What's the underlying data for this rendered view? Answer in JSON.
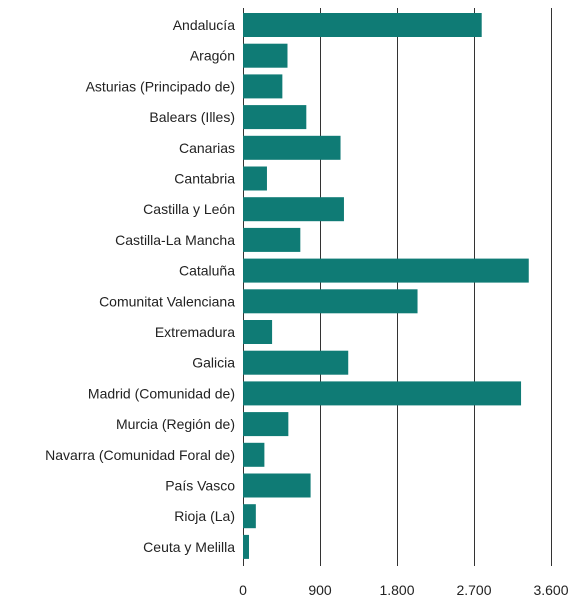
{
  "chart_data": {
    "type": "bar",
    "orientation": "horizontal",
    "categories": [
      "Andalucía",
      "Aragón",
      "Asturias (Principado de)",
      "Balears (Illes)",
      "Canarias",
      "Cantabria",
      "Castilla y León",
      "Castilla-La Mancha",
      "Cataluña",
      "Comunitat Valenciana",
      "Extremadura",
      "Galicia",
      "Madrid (Comunidad de)",
      "Murcia (Región de)",
      "Navarra (Comunidad Foral de)",
      "País Vasco",
      "Rioja (La)",
      "Ceuta y Melilla"
    ],
    "values": [
      2790,
      520,
      460,
      740,
      1140,
      280,
      1180,
      670,
      3340,
      2040,
      340,
      1230,
      3250,
      530,
      250,
      790,
      150,
      70
    ],
    "xlim": [
      0,
      3600
    ],
    "ticks": [
      0,
      900,
      1800,
      2700,
      3600
    ],
    "tick_labels": [
      "0",
      "900",
      "1.800",
      "2.700",
      "3.600"
    ],
    "grid": true,
    "bar_color": "#0f7b75",
    "grid_color": "#333333"
  }
}
